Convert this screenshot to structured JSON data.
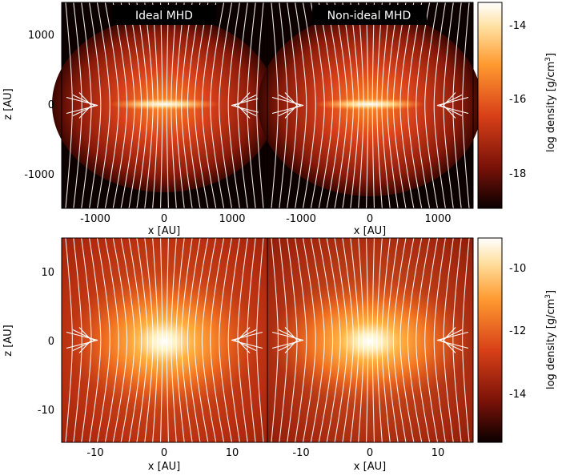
{
  "figure": {
    "rows": [
      {
        "panels": [
          {
            "title": "Ideal MHD"
          },
          {
            "title": "Non-ideal MHD"
          }
        ],
        "xlabel": "x [AU]",
        "ylabel": "z [AU]",
        "xticks": [
          -1000,
          0,
          1000
        ],
        "yticks": [
          1000,
          0,
          -1000
        ],
        "colorbar": {
          "label_main": "log density [g/cm",
          "label_sup": "3",
          "label_end": "]",
          "ticks": [
            -14,
            -16,
            -18
          ]
        }
      },
      {
        "panels": [
          {
            "title": ""
          },
          {
            "title": ""
          }
        ],
        "xlabel": "x [AU]",
        "ylabel": "z [AU]",
        "xticks": [
          -10,
          0,
          10
        ],
        "yticks": [
          10,
          0,
          -10
        ],
        "colorbar": {
          "label_main": "log density [g/cm",
          "label_sup": "3",
          "label_end": "]",
          "ticks": [
            -10,
            -12,
            -14
          ]
        }
      }
    ]
  },
  "chart_data": [
    {
      "type": "heatmap",
      "title": "Ideal MHD",
      "xlabel": "x [AU]",
      "ylabel": "z [AU]",
      "xlim": [
        -1500,
        1500
      ],
      "ylim": [
        -1500,
        1500
      ],
      "colorbar_label": "log density [g/cm3]",
      "colorbar_range": [
        -19,
        -13.5
      ],
      "field_lines": "white",
      "peak_log_density": -13.5
    },
    {
      "type": "heatmap",
      "title": "Non-ideal MHD",
      "xlabel": "x [AU]",
      "ylabel": "z [AU]",
      "xlim": [
        -1500,
        1500
      ],
      "ylim": [
        -1500,
        1500
      ],
      "colorbar_label": "log density [g/cm3]",
      "colorbar_range": [
        -19,
        -13.5
      ],
      "field_lines": "white",
      "peak_log_density": -13.5
    },
    {
      "type": "heatmap",
      "title": "",
      "xlabel": "x [AU]",
      "ylabel": "z [AU]",
      "xlim": [
        -15,
        15
      ],
      "ylim": [
        -15,
        15
      ],
      "colorbar_label": "log density [g/cm3]",
      "colorbar_range": [
        -15.7,
        -9.1
      ],
      "field_lines": "white",
      "peak_log_density": -9.1
    },
    {
      "type": "heatmap",
      "title": "",
      "xlabel": "x [AU]",
      "ylabel": "z [AU]",
      "xlim": [
        -15,
        15
      ],
      "ylim": [
        -15,
        15
      ],
      "colorbar_label": "log density [g/cm3]",
      "colorbar_range": [
        -15.7,
        -9.1
      ],
      "field_lines": "white",
      "peak_log_density": -9.1
    }
  ]
}
